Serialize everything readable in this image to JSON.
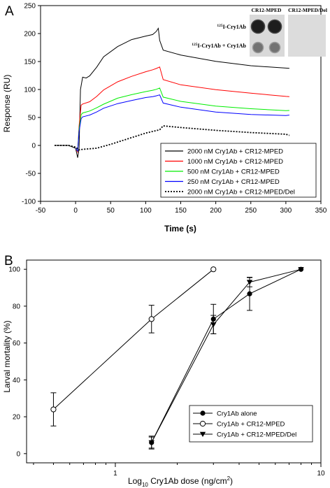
{
  "panels": [
    {
      "label": "A",
      "chart_data": {
        "type": "line",
        "xlabel": "Time (s)",
        "ylabel": "Response (RU)",
        "xlim": [
          -50,
          350
        ],
        "ylim": [
          -100,
          250
        ],
        "xticks": [
          -50,
          0,
          50,
          100,
          150,
          200,
          250,
          300,
          350
        ],
        "yticks": [
          -100,
          -50,
          0,
          50,
          100,
          150,
          200,
          250
        ],
        "grid": false,
        "legend_position": "bottom-right",
        "series": [
          {
            "name": "2000 nM Cry1Ab + CR12-MPED",
            "color": "#000000",
            "dash": "solid",
            "x": [
              -30,
              -10,
              0,
              3,
              5,
              7,
              10,
              15,
              20,
              30,
              40,
              60,
              80,
              100,
              110,
              115,
              118,
              120,
              125,
              150,
              200,
              250,
              300,
              305
            ],
            "y": [
              0,
              0,
              -5,
              -22,
              -5,
              100,
              122,
              121,
              125,
              140,
              158,
              176,
              189,
              196,
              199,
              204,
              209,
              187,
              170,
              162,
              151,
              143,
              138,
              137
            ]
          },
          {
            "name": "1000 nM Cry1Ab + CR12-MPED",
            "color": "#ff0000",
            "dash": "solid",
            "x": [
              0,
              3,
              5,
              8,
              10,
              20,
              30,
              40,
              60,
              80,
              100,
              110,
              115,
              120,
              125,
              150,
              200,
              250,
              300,
              305
            ],
            "y": [
              -5,
              -12,
              35,
              72,
              74,
              78,
              88,
              100,
              114,
              123,
              131,
              135,
              138,
              141,
              118,
              108,
              99,
              93,
              88,
              88
            ]
          },
          {
            "name": "500 nM Cry1Ab + CR12-MPED",
            "color": "#00ee00",
            "dash": "solid",
            "x": [
              0,
              3,
              5,
              8,
              10,
              20,
              30,
              40,
              60,
              80,
              100,
              110,
              115,
              120,
              125,
              150,
              200,
              250,
              300,
              305
            ],
            "y": [
              -5,
              -10,
              30,
              55,
              58,
              62,
              68,
              74,
              84,
              90,
              96,
              99,
              101,
              103,
              86,
              78,
              70,
              66,
              63,
              63
            ]
          },
          {
            "name": "250 nM Cry1Ab + CR12-MPED",
            "color": "#0000ff",
            "dash": "solid",
            "x": [
              0,
              3,
              5,
              8,
              10,
              20,
              30,
              40,
              60,
              80,
              100,
              110,
              115,
              120,
              125,
              150,
              200,
              250,
              300,
              305
            ],
            "y": [
              -5,
              -10,
              25,
              48,
              51,
              55,
              60,
              66,
              74,
              80,
              86,
              88,
              89,
              90,
              75,
              68,
              60,
              56,
              54,
              54
            ]
          },
          {
            "name": "2000 nM Cry1Ab + CR12-MPED/Del",
            "color": "#000000",
            "dash": "dotted",
            "x": [
              -30,
              -10,
              0,
              5,
              10,
              30,
              50,
              70,
              90,
              100,
              110,
              120,
              125,
              150,
              200,
              250,
              300,
              305
            ],
            "y": [
              0,
              0,
              -3,
              -8,
              -7,
              -5,
              2,
              10,
              18,
              22,
              25,
              28,
              35,
              32,
              27,
              23,
              20,
              18
            ]
          }
        ]
      },
      "inset": {
        "col_headers": [
          "CR12-MPED",
          "CR12-MPED/Del"
        ],
        "row_labels": [
          "125I-Cry1Ab",
          "125I-Cry1Ab + Cry1Ab"
        ],
        "row_labels_sup": "125",
        "row_labels_text": [
          "I-Cry1Ab",
          "I-Cry1Ab + Cry1Ab"
        ],
        "spot_intensity": [
          [
            0.95,
            0.0
          ],
          [
            0.45,
            0.0
          ]
        ]
      }
    },
    {
      "label": "B",
      "chart_data": {
        "type": "scatter",
        "xlabel_parts": [
          "Log",
          "10",
          " Cry1Ab dose (ng/cm",
          "2",
          ")"
        ],
        "ylabel": "Larval mortality (%)",
        "x_scale": "log",
        "xlim": [
          0.37,
          10
        ],
        "ylim": [
          -5,
          105
        ],
        "xticks": [
          1,
          10
        ],
        "yticks": [
          0,
          20,
          40,
          60,
          80,
          100
        ],
        "grid": false,
        "legend_position": "bottom-right",
        "series": [
          {
            "name": "Cry1Ab alone",
            "marker": "filled-circle",
            "x": [
              1.5,
              3,
              4.5,
              8
            ],
            "y": [
              6,
              73,
              86.7,
              100
            ],
            "err": [
              3.5,
              8,
              9,
              0
            ]
          },
          {
            "name": "Cry1Ab + CR12-MPED",
            "marker": "open-circle",
            "x": [
              0.5,
              1.5,
              3
            ],
            "y": [
              24,
              73,
              100
            ],
            "err": [
              9,
              7.5,
              0
            ]
          },
          {
            "name": "Cry1Ab + CR12-MPED/Del",
            "marker": "filled-triangle-down",
            "x": [
              1.5,
              3,
              4.5,
              8
            ],
            "y": [
              6,
              70,
              93,
              100
            ],
            "err": [
              3,
              5,
              2.5,
              0
            ]
          }
        ]
      }
    }
  ]
}
